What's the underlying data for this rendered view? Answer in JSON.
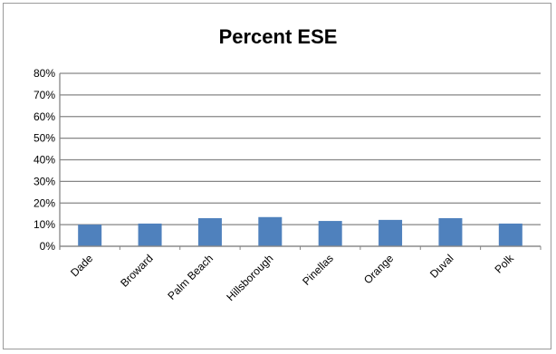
{
  "chart_data": {
    "type": "bar",
    "title": "Percent ESE",
    "categories": [
      "Dade",
      "Broward",
      "Palm Beach",
      "Hillsborough",
      "Pinellas",
      "Orange",
      "Duval",
      "Polk"
    ],
    "values": [
      0.1,
      0.105,
      0.13,
      0.135,
      0.117,
      0.122,
      0.13,
      0.105
    ],
    "ylim": [
      0,
      0.8
    ],
    "yticks": [
      "0%",
      "10%",
      "20%",
      "30%",
      "40%",
      "50%",
      "60%",
      "70%",
      "80%"
    ],
    "grid": true,
    "bar_color": "#4f81bd",
    "grid_color": "#868686"
  }
}
